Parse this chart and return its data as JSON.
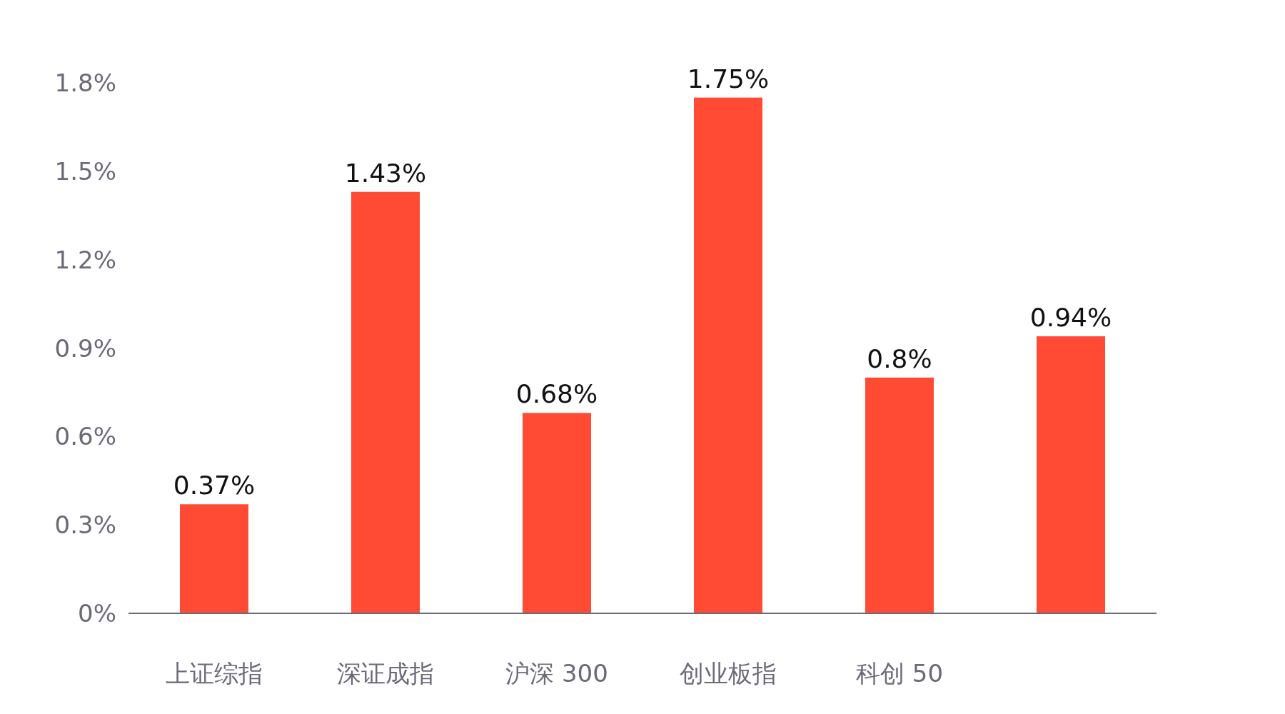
{
  "chart_data": {
    "type": "bar",
    "categories": [
      "上证综指",
      "深证成指",
      "沪深 300",
      "创业板指",
      "科创 50",
      null
    ],
    "values": [
      0.37,
      1.43,
      0.68,
      1.75,
      0.8,
      0.94
    ],
    "value_labels": [
      "0.37%",
      "1.43%",
      "0.68%",
      "1.75%",
      "0.8%",
      "0.94%"
    ],
    "color": "#ff4b33",
    "ylim": [
      0,
      1.8
    ],
    "yticks": [
      {
        "value": 0,
        "label": "0%"
      },
      {
        "value": 0.3,
        "label": "0.3%"
      },
      {
        "value": 0.6,
        "label": "0.6%"
      },
      {
        "value": 0.9,
        "label": "0.9%"
      },
      {
        "value": 1.2,
        "label": "1.2%"
      },
      {
        "value": 1.5,
        "label": "1.5%"
      },
      {
        "value": 1.8,
        "label": "1.8%"
      }
    ],
    "grid": false
  }
}
